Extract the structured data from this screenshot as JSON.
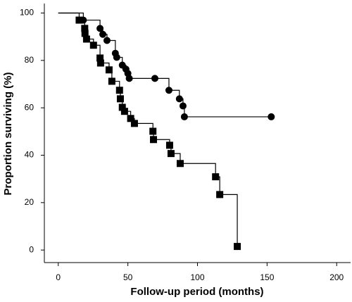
{
  "chart_data": {
    "type": "step",
    "xlabel": "Follow-up period (months)",
    "ylabel": "Proportion surviving (%)",
    "xlim": [
      -10,
      210
    ],
    "ylim": [
      -5.3,
      104
    ],
    "xticks": [
      0,
      50,
      100,
      150,
      200
    ],
    "yticks": [
      0,
      20,
      40,
      60,
      80,
      100
    ],
    "series": [
      {
        "color": "#000000",
        "marker": "circle",
        "x": [
          0,
          18,
          30,
          32,
          35,
          41,
          42,
          46,
          48.6,
          50,
          51,
          69.4,
          79.5,
          87,
          89.6,
          90.6,
          153
        ],
        "values": [
          100,
          97,
          93.5,
          91,
          88.4,
          83,
          81.3,
          78,
          76.3,
          74.5,
          72.4,
          72.4,
          67.4,
          63.8,
          60.8,
          56.2,
          56.2
        ]
      },
      {
        "color": "#000000",
        "marker": "square",
        "x": [
          0,
          15,
          19,
          19.2,
          20.3,
          25.3,
          30,
          30.4,
          36.5,
          38.5,
          44,
          44.6,
          46,
          47.6,
          52,
          54.7,
          68,
          68.4,
          80,
          81,
          87.6,
          113,
          116,
          128.6
        ],
        "values": [
          100,
          97,
          93.5,
          91.4,
          89,
          86.4,
          81,
          78.9,
          76,
          71.2,
          67.4,
          63.8,
          60.2,
          58.5,
          55.5,
          53.4,
          50.1,
          46.6,
          44.2,
          40.7,
          36.5,
          30.9,
          23.4,
          1.5
        ]
      }
    ]
  }
}
